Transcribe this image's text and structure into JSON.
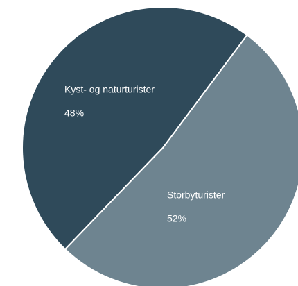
{
  "chart_data": {
    "type": "pie",
    "categories": [
      "Kyst- og naturturister",
      "Storbyturister"
    ],
    "values": [
      48,
      52
    ],
    "value_labels": [
      "48%",
      "52%"
    ],
    "colors": [
      "#2f4a5a",
      "#6e8490"
    ]
  }
}
